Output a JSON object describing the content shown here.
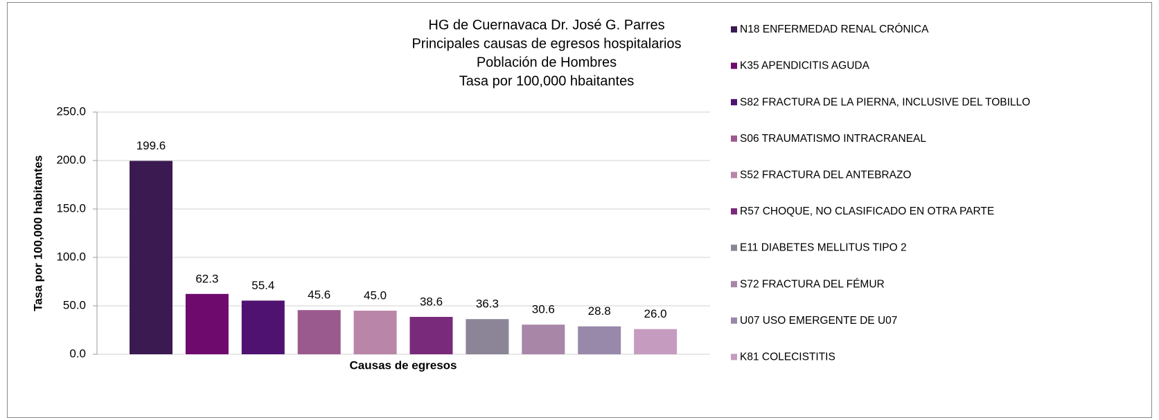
{
  "chart_data": {
    "type": "bar",
    "title": [
      "HG de Cuernavaca Dr. José G. Parres",
      "Principales causas de egresos hospitalarios",
      "Población de  Hombres",
      "Tasa por 100,000 hbaitantes"
    ],
    "x_label": "Causas de egresos",
    "y_label": "Tasa por 100,000 habitantes",
    "ylim": [
      0,
      250
    ],
    "yticks": [
      {
        "value": 0,
        "label": "0.0"
      },
      {
        "value": 50,
        "label": "50.0"
      },
      {
        "value": 100,
        "label": "100.0"
      },
      {
        "value": 150,
        "label": "150.0"
      },
      {
        "value": 200,
        "label": "200.0"
      },
      {
        "value": 250,
        "label": "250.0"
      }
    ],
    "grid": true,
    "legend": "right",
    "series": [
      {
        "name": "N18 ENFERMEDAD RENAL CRÓNICA",
        "color": "#3b1a52",
        "values": [
          199.6
        ],
        "value_labels": [
          "199.6"
        ]
      },
      {
        "name": "K35 APENDICITIS AGUDA",
        "color": "#6e0a6e",
        "values": [
          62.3
        ],
        "value_labels": [
          "62.3"
        ]
      },
      {
        "name": "S82 FRACTURA DE LA PIERNA, INCLUSIVE DEL TOBILLO",
        "color": "#4f1271",
        "values": [
          55.4
        ],
        "value_labels": [
          "55.4"
        ]
      },
      {
        "name": "S06 TRAUMATISMO INTRACRANEAL",
        "color": "#9b5a8e",
        "values": [
          45.6
        ],
        "value_labels": [
          "45.6"
        ]
      },
      {
        "name": "S52 FRACTURA DEL ANTEBRAZO",
        "color": "#b985a8",
        "values": [
          45.0
        ],
        "value_labels": [
          "45.0"
        ]
      },
      {
        "name": "R57 CHOQUE, NO CLASIFICADO EN OTRA PARTE",
        "color": "#7a2a7a",
        "values": [
          38.6
        ],
        "value_labels": [
          "38.6"
        ]
      },
      {
        "name": "E11 DIABETES MELLITUS TIPO 2",
        "color": "#8c8598",
        "values": [
          36.3
        ],
        "value_labels": [
          "36.3"
        ]
      },
      {
        "name": "S72 FRACTURA DEL FÉMUR",
        "color": "#a886a8",
        "values": [
          30.6
        ],
        "value_labels": [
          "30.6"
        ]
      },
      {
        "name": "U07 USO EMERGENTE DE U07",
        "color": "#9888aa",
        "values": [
          28.8
        ],
        "value_labels": [
          "28.8"
        ]
      },
      {
        "name": "K81 COLECISTITIS",
        "color": "#c59bc0",
        "values": [
          26.0
        ],
        "value_labels": [
          "26.0"
        ]
      }
    ]
  }
}
